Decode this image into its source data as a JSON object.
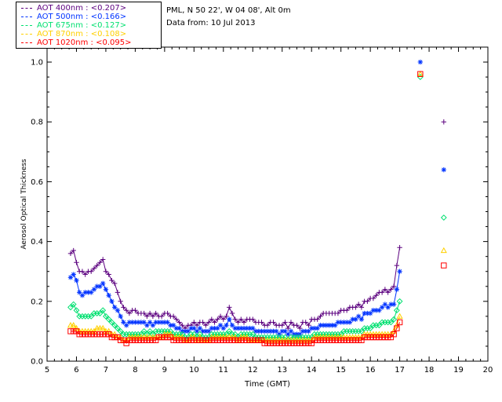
{
  "legend": [
    {
      "label": "AOT  400nm : <0.207>",
      "color": "#5b007f"
    },
    {
      "label": "AOT  500nm : <0.166>",
      "color": "#0033ff"
    },
    {
      "label": "AOT  675nm : <0.127>",
      "color": "#00e070"
    },
    {
      "label": "AOT  870nm : <0.108>",
      "color": "#ffd000"
    },
    {
      "label": "AOT 1020nm : <0.095>",
      "color": "#ff0000"
    }
  ],
  "info": {
    "site": "PML, N 50 22', W 04 08', Alt 0m",
    "date": "Data from: 10 Jul 2013"
  },
  "chart_data": {
    "type": "scatter",
    "xlabel": "Time (GMT)",
    "ylabel": "Aerosol Optical Thickness",
    "xlim": [
      5,
      20
    ],
    "ylim": [
      0,
      1.05
    ],
    "xticks": [
      5,
      6,
      7,
      8,
      9,
      10,
      11,
      12,
      13,
      14,
      15,
      16,
      17,
      18,
      19,
      20
    ],
    "yticks": [
      0.0,
      0.2,
      0.4,
      0.6,
      0.8,
      1.0
    ],
    "ytick_labels": [
      "0.0",
      "0.2",
      "0.4",
      "0.6",
      "0.8",
      "1.0"
    ],
    "x": [
      5.8,
      5.9,
      6.0,
      6.1,
      6.2,
      6.3,
      6.4,
      6.5,
      6.6,
      6.7,
      6.8,
      6.9,
      7.0,
      7.1,
      7.2,
      7.3,
      7.4,
      7.5,
      7.6,
      7.7,
      7.8,
      7.9,
      8.0,
      8.1,
      8.2,
      8.3,
      8.4,
      8.5,
      8.6,
      8.7,
      8.8,
      8.9,
      9.0,
      9.1,
      9.2,
      9.3,
      9.4,
      9.5,
      9.6,
      9.7,
      9.8,
      9.9,
      10.0,
      10.1,
      10.2,
      10.3,
      10.4,
      10.5,
      10.6,
      10.7,
      10.8,
      10.9,
      11.0,
      11.1,
      11.2,
      11.3,
      11.4,
      11.5,
      11.6,
      11.7,
      11.8,
      11.9,
      12.0,
      12.1,
      12.2,
      12.3,
      12.4,
      12.5,
      12.6,
      12.7,
      12.8,
      12.9,
      13.0,
      13.1,
      13.2,
      13.3,
      13.4,
      13.5,
      13.6,
      13.7,
      13.8,
      13.9,
      14.0,
      14.1,
      14.2,
      14.3,
      14.4,
      14.5,
      14.6,
      14.7,
      14.8,
      14.9,
      15.0,
      15.1,
      15.2,
      15.3,
      15.4,
      15.5,
      15.6,
      15.7,
      15.8,
      15.9,
      16.0,
      16.1,
      16.2,
      16.3,
      16.4,
      16.5,
      16.6,
      16.7,
      16.8,
      16.9,
      17.0
    ],
    "series": [
      {
        "name": "AOT  400nm",
        "marker": "plus",
        "color": "#5b007f",
        "values": [
          0.36,
          0.37,
          0.33,
          0.3,
          0.3,
          0.29,
          0.3,
          0.3,
          0.31,
          0.32,
          0.33,
          0.34,
          0.3,
          0.29,
          0.27,
          0.26,
          0.23,
          0.2,
          0.18,
          0.17,
          0.16,
          0.17,
          0.17,
          0.16,
          0.16,
          0.16,
          0.15,
          0.16,
          0.15,
          0.16,
          0.15,
          0.15,
          0.16,
          0.16,
          0.15,
          0.15,
          0.14,
          0.13,
          0.12,
          0.11,
          0.12,
          0.12,
          0.13,
          0.12,
          0.13,
          0.13,
          0.12,
          0.13,
          0.14,
          0.13,
          0.14,
          0.15,
          0.14,
          0.15,
          0.18,
          0.16,
          0.14,
          0.13,
          0.14,
          0.13,
          0.14,
          0.14,
          0.14,
          0.13,
          0.13,
          0.13,
          0.12,
          0.12,
          0.13,
          0.13,
          0.12,
          0.12,
          0.12,
          0.13,
          0.11,
          0.13,
          0.12,
          0.12,
          0.11,
          0.13,
          0.13,
          0.12,
          0.14,
          0.14,
          0.14,
          0.15,
          0.16,
          0.16,
          0.16,
          0.16,
          0.16,
          0.16,
          0.17,
          0.17,
          0.17,
          0.18,
          0.18,
          0.18,
          0.19,
          0.18,
          0.2,
          0.2,
          0.21,
          0.21,
          0.22,
          0.23,
          0.23,
          0.24,
          0.23,
          0.24,
          0.25,
          0.32,
          0.38
        ]
      },
      {
        "name": "AOT  500nm",
        "marker": "asterisk",
        "color": "#0033ff",
        "values": [
          0.28,
          0.29,
          0.27,
          0.23,
          0.22,
          0.23,
          0.23,
          0.23,
          0.24,
          0.25,
          0.25,
          0.26,
          0.24,
          0.22,
          0.2,
          0.18,
          0.17,
          0.15,
          0.13,
          0.12,
          0.13,
          0.13,
          0.13,
          0.13,
          0.13,
          0.13,
          0.12,
          0.13,
          0.12,
          0.13,
          0.13,
          0.13,
          0.13,
          0.13,
          0.12,
          0.12,
          0.11,
          0.11,
          0.1,
          0.1,
          0.1,
          0.11,
          0.11,
          0.1,
          0.11,
          0.1,
          0.1,
          0.1,
          0.11,
          0.11,
          0.11,
          0.12,
          0.11,
          0.12,
          0.14,
          0.12,
          0.11,
          0.11,
          0.11,
          0.11,
          0.11,
          0.11,
          0.11,
          0.1,
          0.1,
          0.1,
          0.1,
          0.1,
          0.1,
          0.1,
          0.1,
          0.09,
          0.1,
          0.1,
          0.09,
          0.1,
          0.09,
          0.09,
          0.09,
          0.1,
          0.1,
          0.1,
          0.11,
          0.11,
          0.11,
          0.12,
          0.12,
          0.12,
          0.12,
          0.12,
          0.12,
          0.13,
          0.13,
          0.13,
          0.13,
          0.13,
          0.14,
          0.14,
          0.15,
          0.14,
          0.16,
          0.16,
          0.16,
          0.17,
          0.17,
          0.17,
          0.18,
          0.19,
          0.18,
          0.19,
          0.19,
          0.24,
          0.3
        ]
      },
      {
        "name": "AOT  675nm",
        "marker": "diamond",
        "color": "#00e070",
        "values": [
          0.18,
          0.19,
          0.17,
          0.15,
          0.15,
          0.15,
          0.15,
          0.15,
          0.16,
          0.16,
          0.16,
          0.17,
          0.15,
          0.14,
          0.13,
          0.12,
          0.11,
          0.1,
          0.09,
          0.09,
          0.09,
          0.09,
          0.09,
          0.09,
          0.09,
          0.1,
          0.09,
          0.1,
          0.09,
          0.1,
          0.1,
          0.1,
          0.1,
          0.1,
          0.1,
          0.09,
          0.09,
          0.09,
          0.09,
          0.08,
          0.08,
          0.09,
          0.09,
          0.08,
          0.09,
          0.08,
          0.08,
          0.08,
          0.09,
          0.09,
          0.09,
          0.09,
          0.09,
          0.09,
          0.1,
          0.09,
          0.09,
          0.08,
          0.09,
          0.09,
          0.09,
          0.09,
          0.09,
          0.08,
          0.08,
          0.08,
          0.08,
          0.08,
          0.08,
          0.08,
          0.08,
          0.08,
          0.08,
          0.08,
          0.07,
          0.08,
          0.08,
          0.08,
          0.08,
          0.08,
          0.08,
          0.08,
          0.08,
          0.09,
          0.09,
          0.09,
          0.09,
          0.09,
          0.09,
          0.09,
          0.09,
          0.09,
          0.09,
          0.1,
          0.1,
          0.1,
          0.1,
          0.1,
          0.1,
          0.1,
          0.11,
          0.11,
          0.11,
          0.12,
          0.12,
          0.12,
          0.13,
          0.13,
          0.13,
          0.13,
          0.14,
          0.17,
          0.2
        ]
      },
      {
        "name": "AOT  870nm",
        "marker": "triangle",
        "color": "#ffd000",
        "values": [
          0.12,
          0.12,
          0.11,
          0.1,
          0.1,
          0.1,
          0.1,
          0.1,
          0.1,
          0.11,
          0.11,
          0.11,
          0.1,
          0.1,
          0.09,
          0.09,
          0.08,
          0.08,
          0.07,
          0.07,
          0.08,
          0.08,
          0.08,
          0.08,
          0.08,
          0.08,
          0.08,
          0.08,
          0.08,
          0.08,
          0.08,
          0.08,
          0.09,
          0.09,
          0.09,
          0.08,
          0.08,
          0.08,
          0.08,
          0.07,
          0.07,
          0.08,
          0.08,
          0.07,
          0.08,
          0.07,
          0.07,
          0.07,
          0.08,
          0.08,
          0.08,
          0.08,
          0.08,
          0.08,
          0.08,
          0.08,
          0.08,
          0.07,
          0.08,
          0.08,
          0.08,
          0.07,
          0.07,
          0.07,
          0.07,
          0.07,
          0.07,
          0.07,
          0.07,
          0.07,
          0.07,
          0.07,
          0.07,
          0.07,
          0.07,
          0.07,
          0.07,
          0.07,
          0.07,
          0.07,
          0.07,
          0.07,
          0.07,
          0.08,
          0.08,
          0.08,
          0.08,
          0.08,
          0.08,
          0.08,
          0.08,
          0.08,
          0.08,
          0.08,
          0.08,
          0.08,
          0.08,
          0.08,
          0.08,
          0.08,
          0.09,
          0.09,
          0.09,
          0.09,
          0.09,
          0.09,
          0.09,
          0.09,
          0.09,
          0.09,
          0.1,
          0.12,
          0.15
        ]
      },
      {
        "name": "AOT 1020nm",
        "marker": "square",
        "color": "#ff0000",
        "values": [
          0.1,
          0.1,
          0.1,
          0.09,
          0.09,
          0.09,
          0.09,
          0.09,
          0.09,
          0.09,
          0.09,
          0.09,
          0.09,
          0.09,
          0.08,
          0.08,
          0.08,
          0.07,
          0.07,
          0.06,
          0.07,
          0.07,
          0.07,
          0.07,
          0.07,
          0.07,
          0.07,
          0.07,
          0.07,
          0.07,
          0.08,
          0.08,
          0.08,
          0.08,
          0.08,
          0.07,
          0.07,
          0.07,
          0.07,
          0.07,
          0.07,
          0.07,
          0.07,
          0.07,
          0.07,
          0.07,
          0.07,
          0.07,
          0.07,
          0.07,
          0.07,
          0.07,
          0.07,
          0.07,
          0.07,
          0.07,
          0.07,
          0.07,
          0.07,
          0.07,
          0.07,
          0.07,
          0.07,
          0.07,
          0.07,
          0.07,
          0.06,
          0.06,
          0.06,
          0.06,
          0.06,
          0.06,
          0.06,
          0.06,
          0.06,
          0.06,
          0.06,
          0.06,
          0.06,
          0.06,
          0.06,
          0.06,
          0.06,
          0.07,
          0.07,
          0.07,
          0.07,
          0.07,
          0.07,
          0.07,
          0.07,
          0.07,
          0.07,
          0.07,
          0.07,
          0.07,
          0.07,
          0.07,
          0.07,
          0.07,
          0.08,
          0.08,
          0.08,
          0.08,
          0.08,
          0.08,
          0.08,
          0.08,
          0.08,
          0.08,
          0.09,
          0.11,
          0.13
        ]
      }
    ],
    "extra_points": [
      {
        "x": 17.7,
        "values": [
          null,
          1.0,
          0.95,
          0.96,
          0.96
        ]
      },
      {
        "x": 18.5,
        "values": [
          0.8,
          0.64,
          0.48,
          0.37,
          0.32
        ]
      }
    ]
  }
}
